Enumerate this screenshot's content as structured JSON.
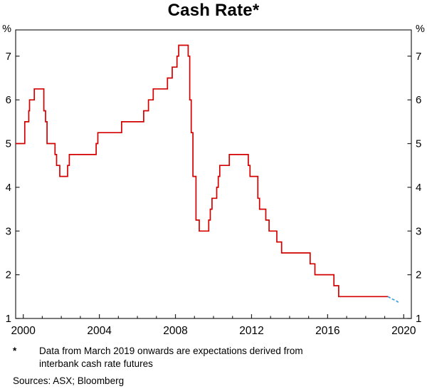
{
  "title": "Cash Rate*",
  "footnote": {
    "marker": "*",
    "line1": "Data from March 2019 onwards are expectations derived from",
    "line2": "interbank cash rate futures"
  },
  "sources_label": "Sources: ASX; Bloomberg",
  "chart_data": {
    "type": "line",
    "subtype": "step",
    "title": "Cash Rate*",
    "ylabel_left": "%",
    "ylabel_right": "%",
    "xlim": [
      1999.6,
      2020.4
    ],
    "ylim": [
      1,
      7.6
    ],
    "yticks": [
      1,
      2,
      3,
      4,
      5,
      6,
      7
    ],
    "xticks": [
      2000,
      2004,
      2008,
      2012,
      2016,
      2020
    ],
    "minor_xtick_every_year": true,
    "grid": false,
    "axis_color": "#222222",
    "series": [
      {
        "name": "Cash rate (actual)",
        "color": "#d40000",
        "style": "solid",
        "step": true,
        "points": [
          [
            1999.6,
            5.0
          ],
          [
            2000.08,
            5.5
          ],
          [
            2000.29,
            5.75
          ],
          [
            2000.33,
            6.0
          ],
          [
            2000.58,
            6.25
          ],
          [
            2001.08,
            5.75
          ],
          [
            2001.17,
            5.5
          ],
          [
            2001.25,
            5.0
          ],
          [
            2001.67,
            4.75
          ],
          [
            2001.75,
            4.5
          ],
          [
            2001.92,
            4.25
          ],
          [
            2002.33,
            4.5
          ],
          [
            2002.42,
            4.75
          ],
          [
            2003.83,
            5.0
          ],
          [
            2003.92,
            5.25
          ],
          [
            2005.17,
            5.5
          ],
          [
            2006.33,
            5.75
          ],
          [
            2006.58,
            6.0
          ],
          [
            2006.83,
            6.25
          ],
          [
            2007.58,
            6.5
          ],
          [
            2007.83,
            6.75
          ],
          [
            2008.08,
            7.0
          ],
          [
            2008.17,
            7.25
          ],
          [
            2008.67,
            7.0
          ],
          [
            2008.75,
            6.0
          ],
          [
            2008.83,
            5.25
          ],
          [
            2008.92,
            4.25
          ],
          [
            2009.08,
            3.25
          ],
          [
            2009.25,
            3.0
          ],
          [
            2009.75,
            3.25
          ],
          [
            2009.83,
            3.5
          ],
          [
            2009.92,
            3.75
          ],
          [
            2010.17,
            4.0
          ],
          [
            2010.25,
            4.25
          ],
          [
            2010.33,
            4.5
          ],
          [
            2010.83,
            4.75
          ],
          [
            2011.83,
            4.5
          ],
          [
            2011.92,
            4.25
          ],
          [
            2012.33,
            3.75
          ],
          [
            2012.42,
            3.5
          ],
          [
            2012.75,
            3.25
          ],
          [
            2012.92,
            3.0
          ],
          [
            2013.33,
            2.75
          ],
          [
            2013.58,
            2.5
          ],
          [
            2015.08,
            2.25
          ],
          [
            2015.33,
            2.0
          ],
          [
            2016.33,
            1.75
          ],
          [
            2016.58,
            1.5
          ],
          [
            2019.17,
            1.5
          ]
        ]
      },
      {
        "name": "Expectations from interbank cash rate futures",
        "color": "#3d9fd6",
        "style": "dashed",
        "step": false,
        "points": [
          [
            2019.17,
            1.5
          ],
          [
            2019.3,
            1.47
          ],
          [
            2019.42,
            1.44
          ],
          [
            2019.52,
            1.42
          ],
          [
            2019.62,
            1.4
          ],
          [
            2019.72,
            1.37
          ]
        ]
      }
    ]
  }
}
